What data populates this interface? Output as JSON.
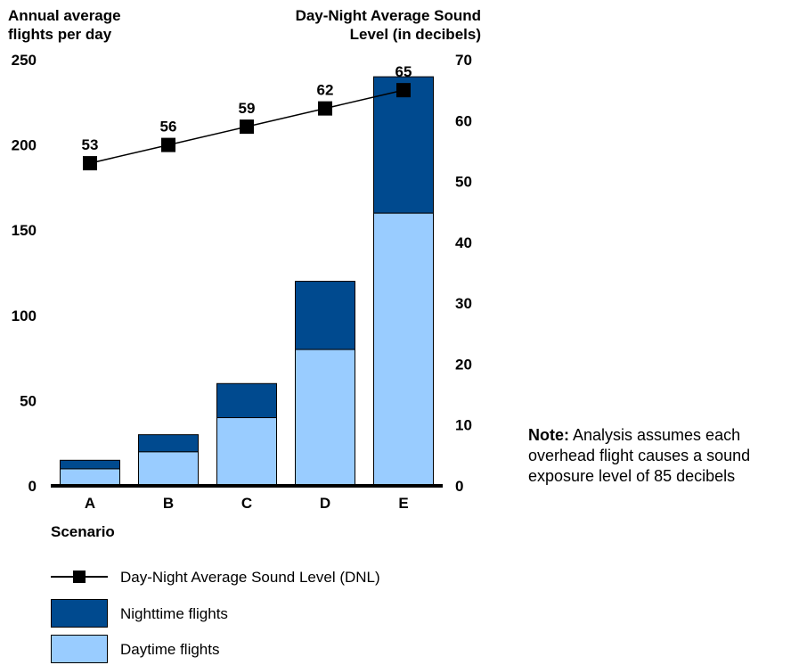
{
  "chart_data": {
    "type": "bar",
    "categories": [
      "A",
      "B",
      "C",
      "D",
      "E"
    ],
    "stacked": true,
    "series": [
      {
        "name": "Daytime flights",
        "kind": "bar",
        "axis": "left",
        "color": "#99ccff",
        "values": [
          10,
          20,
          40,
          80,
          160
        ]
      },
      {
        "name": "Nighttime flights",
        "kind": "bar",
        "axis": "left",
        "color": "#004a8f",
        "values": [
          5,
          10,
          20,
          40,
          80
        ]
      },
      {
        "name": "Day-Night Average Sound Level (DNL)",
        "kind": "line",
        "axis": "right",
        "color": "#000000",
        "marker": "square",
        "values": [
          53,
          56,
          59,
          62,
          65
        ]
      }
    ],
    "data_labels": [
      "53",
      "56",
      "59",
      "62",
      "65"
    ],
    "xlabel": "Scenario",
    "ylabel_left": "Annual average flights per day",
    "ylabel_left_lines": [
      "Annual average",
      "flights per day"
    ],
    "ylabel_right": "Day-Night Average Sound Level (in decibels)",
    "ylabel_right_lines": [
      "Day-Night Average Sound",
      "Level (in decibels)"
    ],
    "ylim_left": [
      0,
      250
    ],
    "yticks_left": [
      "0",
      "50",
      "100",
      "150",
      "200",
      "250"
    ],
    "ylim_right": [
      0,
      70
    ],
    "yticks_right": [
      "0",
      "10",
      "20",
      "30",
      "40",
      "50",
      "60",
      "70"
    ],
    "grid": false,
    "legend_position": "bottom-left"
  },
  "legend": [
    {
      "label": "Day-Night Average Sound Level (DNL)",
      "type": "line"
    },
    {
      "label": "Nighttime flights",
      "type": "swatch",
      "color": "#004a8f"
    },
    {
      "label": "Daytime flights",
      "type": "swatch",
      "color": "#99ccff"
    }
  ],
  "note": {
    "bold": "Note:",
    "text": " Analysis assumes each overhead flight causes a sound exposure level of 85 decibels"
  }
}
